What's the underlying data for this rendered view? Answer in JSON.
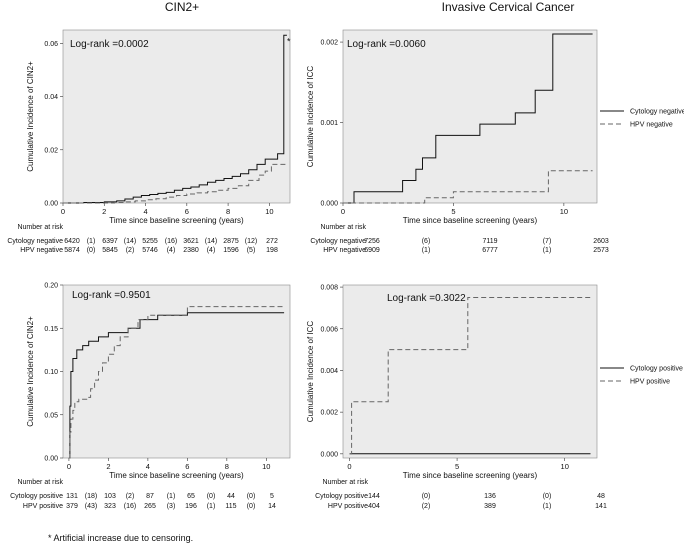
{
  "page": {
    "title_left": "CIN2+",
    "title_right": "Invasive Cervical Cancer",
    "footnote": "* Artificial increase due to censoring."
  },
  "chart_data": [
    {
      "id": "p1",
      "type": "line",
      "title": "CIN2+",
      "logrank": "Log-rank =0.0002",
      "xlabel": "Time since baseline screening (years)",
      "ylabel": "Cumulative Incidence of CIN2+",
      "xlim": [
        0,
        11
      ],
      "ylim": [
        0,
        0.065
      ],
      "xticks": [
        0,
        2,
        4,
        6,
        8,
        10
      ],
      "yticks": [
        0,
        0.02,
        0.04,
        0.06
      ],
      "ytick_labels": [
        "0.00",
        "0.02",
        "0.04",
        "0.06"
      ],
      "annotation": "*",
      "series": [
        {
          "name": "Cytology negative",
          "dash": "solid",
          "x": [
            0,
            1,
            2,
            2.6,
            3,
            3.4,
            3.8,
            4.2,
            4.6,
            5,
            5.4,
            5.8,
            6.2,
            6.6,
            7,
            7.4,
            7.8,
            8.2,
            8.6,
            9,
            9.4,
            9.8,
            10.4,
            10.7,
            10.85
          ],
          "y": [
            0,
            0.0002,
            0.0004,
            0.0008,
            0.0015,
            0.0022,
            0.0028,
            0.0032,
            0.0036,
            0.004,
            0.0048,
            0.0055,
            0.006,
            0.0068,
            0.0078,
            0.0085,
            0.0092,
            0.01,
            0.011,
            0.0125,
            0.0145,
            0.0165,
            0.0185,
            0.063,
            0.063
          ]
        },
        {
          "name": "HPV negative",
          "dash": "dashed",
          "x": [
            0,
            2.5,
            3,
            3.5,
            4,
            4.5,
            5,
            5.5,
            6,
            6.5,
            7,
            7.5,
            8,
            8.5,
            9,
            9.5,
            9.8,
            10.1,
            10.85
          ],
          "y": [
            0,
            0.0002,
            0.0004,
            0.0008,
            0.0012,
            0.0016,
            0.0022,
            0.0028,
            0.0034,
            0.0038,
            0.0042,
            0.0048,
            0.0055,
            0.0065,
            0.0085,
            0.0105,
            0.012,
            0.0145,
            0.0145
          ]
        }
      ],
      "risk_title": "Number at risk",
      "risk_rows": [
        {
          "label": "Cytology negative",
          "cells": [
            "6420",
            "(1)",
            "6397",
            "(14)",
            "5255",
            "(16)",
            "3621",
            "(14)",
            "2875",
            "(12)",
            "272"
          ]
        },
        {
          "label": "HPV negative",
          "cells": [
            "5874",
            "(0)",
            "5845",
            "(2)",
            "5746",
            "(4)",
            "2380",
            "(4)",
            "1596",
            "(5)",
            "198"
          ]
        }
      ]
    },
    {
      "id": "p2",
      "type": "line",
      "title": "Invasive Cervical Cancer",
      "logrank": "Log-rank =0.0060",
      "xlabel": "Time since baseline screening (years)",
      "ylabel": "Cumulative Incidence of ICC",
      "xlim": [
        0,
        11.5
      ],
      "ylim": [
        0,
        0.00215
      ],
      "xticks": [
        0,
        5,
        10
      ],
      "yticks": [
        0,
        0.001,
        0.002
      ],
      "ytick_labels": [
        "0.000",
        "0.001",
        "0.002"
      ],
      "legend": [
        "Cytology negative",
        "HPV negative"
      ],
      "series": [
        {
          "name": "Cytology negative",
          "dash": "solid",
          "x": [
            0,
            0.5,
            2.7,
            3.3,
            3.6,
            4.2,
            6.2,
            7.8,
            8.7,
            9.5,
            11.3
          ],
          "y": [
            0,
            0.00014,
            0.00028,
            0.00042,
            0.00056,
            0.00084,
            0.00098,
            0.00112,
            0.0014,
            0.0021,
            0.0021
          ]
        },
        {
          "name": "HPV negative",
          "dash": "dashed",
          "x": [
            0,
            3.7,
            5,
            9.3,
            11.3
          ],
          "y": [
            0,
            6.5e-05,
            0.00014,
            0.0004,
            0.0004
          ]
        }
      ],
      "risk_title": "Number at risk",
      "risk_rows": [
        {
          "label": "Cytology negative",
          "cells": [
            "7256",
            "(6)",
            "7119",
            "(7)",
            "2603"
          ]
        },
        {
          "label": "HPV negative",
          "cells": [
            "6909",
            "(1)",
            "6777",
            "(1)",
            "2573"
          ]
        }
      ]
    },
    {
      "id": "p3",
      "type": "line",
      "title": "",
      "logrank": "Log-rank =0.9501",
      "xlabel": "Time since baseline screening (years)",
      "ylabel": "Cumulative Incidence of CIN2+",
      "xlim": [
        -0.3,
        11.2
      ],
      "ylim": [
        0,
        0.2
      ],
      "xticks": [
        0,
        2,
        4,
        6,
        8,
        10
      ],
      "yticks": [
        0,
        0.05,
        0.1,
        0.15,
        0.2
      ],
      "ytick_labels": [
        "0.00",
        "0.05",
        "0.10",
        "0.15",
        "0.20"
      ],
      "series": [
        {
          "name": "Cytology positive",
          "dash": "solid",
          "x": [
            0,
            0.05,
            0.1,
            0.2,
            0.4,
            0.7,
            1.0,
            1.5,
            2.0,
            3.0,
            3.6,
            4.5,
            6.0,
            10.9
          ],
          "y": [
            0,
            0.06,
            0.1,
            0.115,
            0.125,
            0.13,
            0.135,
            0.14,
            0.145,
            0.15,
            0.16,
            0.165,
            0.168,
            0.168
          ]
        },
        {
          "name": "HPV positive",
          "dash": "dashed",
          "x": [
            0,
            0.05,
            0.1,
            0.2,
            0.3,
            0.5,
            0.9,
            1.1,
            1.3,
            1.5,
            1.7,
            2.0,
            2.3,
            2.6,
            3.0,
            3.5,
            4.0,
            6.0,
            10.9
          ],
          "y": [
            0,
            0.03,
            0.045,
            0.055,
            0.065,
            0.068,
            0.07,
            0.08,
            0.09,
            0.1,
            0.11,
            0.12,
            0.13,
            0.14,
            0.15,
            0.16,
            0.165,
            0.175,
            0.175
          ]
        }
      ],
      "risk_title": "Number at risk",
      "risk_rows": [
        {
          "label": "Cytology positive",
          "cells": [
            "131",
            "(18)",
            "103",
            "(2)",
            "87",
            "(1)",
            "65",
            "(0)",
            "44",
            "(0)",
            "5"
          ]
        },
        {
          "label": "HPV positive",
          "cells": [
            "379",
            "(43)",
            "323",
            "(16)",
            "265",
            "(3)",
            "196",
            "(1)",
            "115",
            "(0)",
            "14"
          ]
        }
      ]
    },
    {
      "id": "p4",
      "type": "line",
      "title": "",
      "logrank": "Log-rank =0.3022",
      "xlabel": "Time since baseline screening (years)",
      "ylabel": "Cumulative Incidence of ICC",
      "xlim": [
        -0.3,
        11.5
      ],
      "ylim": [
        -0.0002,
        0.0081
      ],
      "xticks": [
        0,
        5,
        10
      ],
      "yticks": [
        0,
        0.002,
        0.004,
        0.006,
        0.008
      ],
      "ytick_labels": [
        "0.000",
        "0.002",
        "0.004",
        "0.006",
        "0.008"
      ],
      "legend": [
        "Cytology positive",
        "HPV positive"
      ],
      "series": [
        {
          "name": "Cytology positive",
          "dash": "solid",
          "x": [
            0,
            11.2
          ],
          "y": [
            0,
            0
          ]
        },
        {
          "name": "HPV positive",
          "dash": "dashed",
          "x": [
            0,
            0.1,
            1.8,
            5.5,
            11.2
          ],
          "y": [
            0,
            0.0025,
            0.005,
            0.0075,
            0.0075
          ]
        }
      ],
      "risk_title": "Number at risk",
      "risk_rows": [
        {
          "label": "Cytology positive",
          "cells": [
            "144",
            "(0)",
            "136",
            "(0)",
            "48"
          ]
        },
        {
          "label": "HPV positive",
          "cells": [
            "404",
            "(2)",
            "389",
            "(1)",
            "141"
          ]
        }
      ]
    }
  ]
}
